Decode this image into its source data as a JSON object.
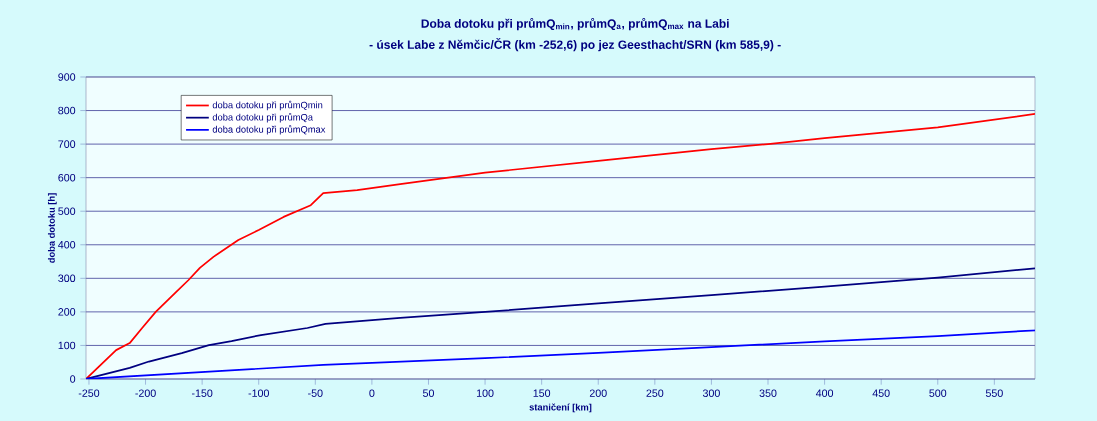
{
  "chart_data": {
    "type": "line",
    "title": "Doba dotoku při průmQ$_{min}$, průmQ$_{a}$, průmQ$_{max}$ na Labi",
    "subtitle": "- úsek Labe z Němčic/ČR (km -252,6) po jez Geesthacht/SRN (km 585,9) -",
    "xlabel": "staničení [km]",
    "ylabel": "doba dotoku [h]",
    "xlim": [
      -252.6,
      585.9
    ],
    "ylim": [
      0,
      900
    ],
    "xticks": [
      -250,
      -200,
      -150,
      -100,
      -50,
      0,
      50,
      100,
      150,
      200,
      250,
      300,
      350,
      400,
      450,
      500,
      550
    ],
    "yticks": [
      0,
      100,
      200,
      300,
      400,
      500,
      600,
      700,
      800,
      900
    ],
    "grid": "y",
    "legend": "top left",
    "series": [
      {
        "name": "doba dotoku při průmQmin",
        "color": "#ff0000",
        "x": [
          -252.6,
          -226,
          -214,
          -203,
          -191,
          -174,
          -162,
          -152,
          -140,
          -118,
          -100,
          -78,
          -54,
          -43,
          -13,
          25,
          100,
          200,
          300,
          350,
          400,
          500,
          585.9
        ],
        "values": [
          0,
          86,
          107,
          152,
          200,
          256,
          295,
          331,
          364,
          414,
          444,
          483,
          518,
          554,
          563,
          581,
          615,
          650,
          685,
          700,
          718,
          750,
          790
        ]
      },
      {
        "name": "doba dotoku při průmQa",
        "color": "#000080",
        "x": [
          -252.6,
          -214,
          -197,
          -168,
          -144,
          -124,
          -98,
          -57,
          -41,
          25,
          100,
          200,
          300,
          400,
          500,
          585.9
        ],
        "values": [
          0,
          33,
          52,
          77,
          101,
          113,
          131,
          152,
          164,
          182,
          200,
          225,
          250,
          275,
          302,
          330
        ]
      },
      {
        "name": "doba dotoku při průmQmax",
        "color": "#0000ff",
        "x": [
          -252.6,
          -43,
          0,
          100,
          200,
          300,
          400,
          500,
          585.9
        ],
        "values": [
          0,
          42,
          48,
          62,
          78,
          95,
          112,
          128,
          145
        ]
      }
    ]
  }
}
